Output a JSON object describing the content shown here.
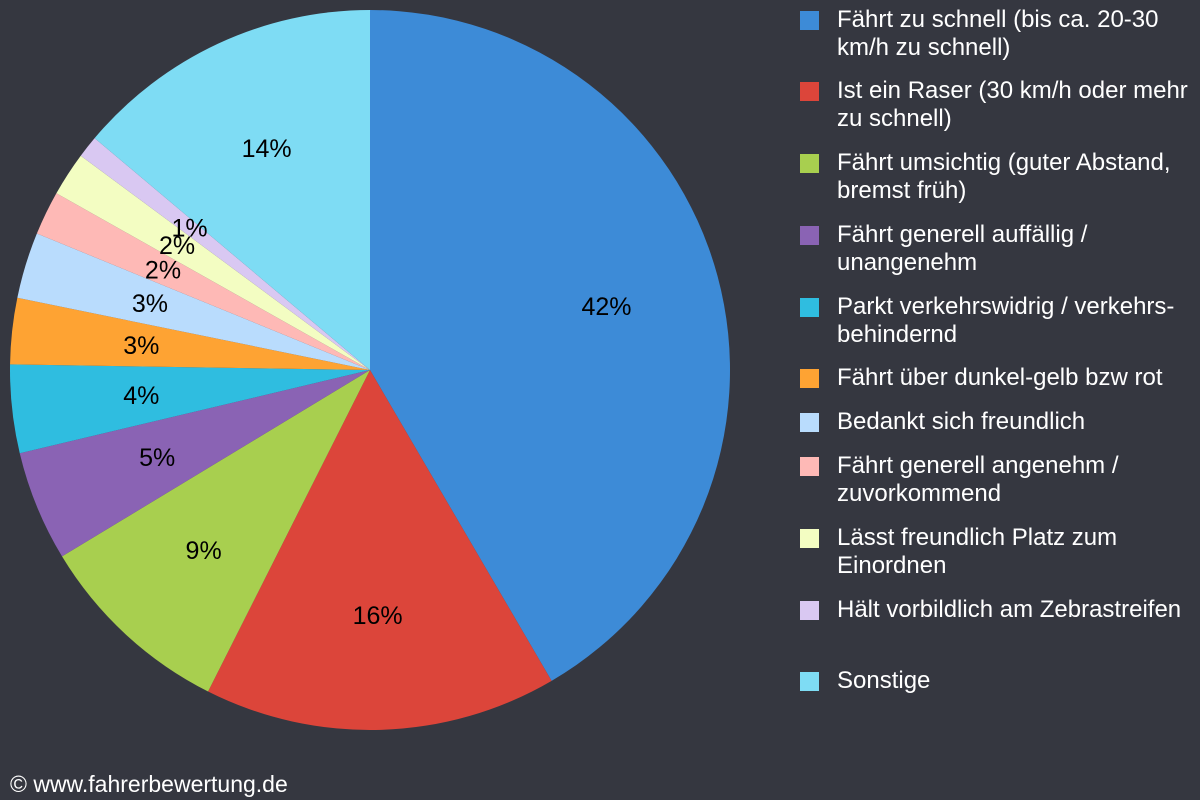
{
  "chart_data": {
    "type": "pie",
    "start": "top",
    "direction": "clockwise",
    "slices": [
      {
        "label": "Fährt zu schnell (bis ca. 20-30 km/h zu schnell)",
        "value": 42,
        "text": "42%",
        "color": "#3d8bd7"
      },
      {
        "label": "Ist ein Raser (30 km/h oder mehr zu schnell)",
        "value": 16,
        "text": "16%",
        "color": "#dc453a"
      },
      {
        "label": "Fährt umsichtig (guter Abstand, bremst früh)",
        "value": 9,
        "text": "9%",
        "color": "#a8cf4f"
      },
      {
        "label": "Fährt generell auffällig / unangenehm",
        "value": 5,
        "text": "5%",
        "color": "#8a63b4"
      },
      {
        "label": "Parkt verkehrswidrig / verkehrs-behindernd",
        "value": 4,
        "text": "4%",
        "color": "#2fbde0"
      },
      {
        "label": "Fährt über dunkel-gelb bzw rot",
        "value": 3,
        "text": "3%",
        "color": "#fea333"
      },
      {
        "label": "Bedankt sich freundlich",
        "value": 3,
        "text": "3%",
        "color": "#b9dcfd"
      },
      {
        "label": "Fährt generell angenehm / zuvorkommend",
        "value": 2,
        "text": "2%",
        "color": "#feb9b6"
      },
      {
        "label": "Lässt freundlich Platz zum Einordnen",
        "value": 2,
        "text": "2%",
        "color": "#f3fdc2"
      },
      {
        "label": "Hält vorbildlich am Zebrastreifen",
        "value": 1,
        "text": "1%",
        "color": "#d9c8f2"
      },
      {
        "label": "Sonstige",
        "value": 14,
        "text": "14%",
        "color": "#7edcf4"
      }
    ],
    "legend_position": "right"
  },
  "footer": {
    "copyright": "© www.fahrerbewertung.de"
  }
}
